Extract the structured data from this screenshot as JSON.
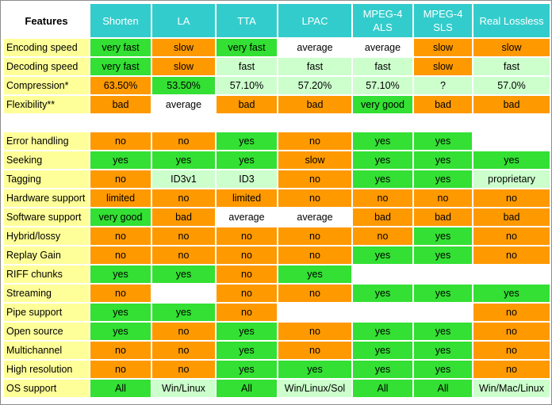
{
  "table": {
    "corner": "Features",
    "columns": [
      "Shorten",
      "LA",
      "TTA",
      "LPAC",
      "MPEG-4 ALS",
      "MPEG-4 SLS",
      "Real Lossless"
    ],
    "colors": {
      "o": "#ff9900",
      "g": "#33e033",
      "lg": "#ccffcc",
      "w": "#ffffff",
      "header": "#33cccc",
      "row_label": "#ffff99"
    },
    "rows": [
      {
        "label": "Encoding speed",
        "cells": [
          {
            "t": "very fast",
            "c": "g"
          },
          {
            "t": "slow",
            "c": "o"
          },
          {
            "t": "very fast",
            "c": "g"
          },
          {
            "t": "average",
            "c": "w"
          },
          {
            "t": "average",
            "c": "w"
          },
          {
            "t": "slow",
            "c": "o"
          },
          {
            "t": "slow",
            "c": "o"
          }
        ]
      },
      {
        "label": "Decoding speed",
        "cells": [
          {
            "t": "very fast",
            "c": "g"
          },
          {
            "t": "slow",
            "c": "o"
          },
          {
            "t": "fast",
            "c": "lg"
          },
          {
            "t": "fast",
            "c": "lg"
          },
          {
            "t": "fast",
            "c": "lg"
          },
          {
            "t": "slow",
            "c": "o"
          },
          {
            "t": "fast",
            "c": "lg"
          }
        ]
      },
      {
        "label": "Compression*",
        "cells": [
          {
            "t": "63.50%",
            "c": "o"
          },
          {
            "t": "53.50%",
            "c": "g"
          },
          {
            "t": "57.10%",
            "c": "lg"
          },
          {
            "t": "57.20%",
            "c": "lg"
          },
          {
            "t": "57.10%",
            "c": "lg"
          },
          {
            "t": "?",
            "c": "lg"
          },
          {
            "t": "57.0%",
            "c": "lg"
          }
        ]
      },
      {
        "label": "Flexibility**",
        "cells": [
          {
            "t": "bad",
            "c": "o"
          },
          {
            "t": "average",
            "c": "w"
          },
          {
            "t": "bad",
            "c": "o"
          },
          {
            "t": "bad",
            "c": "o"
          },
          {
            "t": "very good",
            "c": "g"
          },
          {
            "t": "bad",
            "c": "o"
          },
          {
            "t": "bad",
            "c": "o"
          }
        ]
      },
      {
        "gap": true
      },
      {
        "label": "Error handling",
        "cells": [
          {
            "t": "no",
            "c": "o"
          },
          {
            "t": "no",
            "c": "o"
          },
          {
            "t": "yes",
            "c": "g"
          },
          {
            "t": "no",
            "c": "o"
          },
          {
            "t": "yes",
            "c": "g"
          },
          {
            "t": "yes",
            "c": "g"
          },
          {
            "t": "",
            "c": "w"
          }
        ]
      },
      {
        "label": "Seeking",
        "cells": [
          {
            "t": "yes",
            "c": "g"
          },
          {
            "t": "yes",
            "c": "g"
          },
          {
            "t": "yes",
            "c": "g"
          },
          {
            "t": "slow",
            "c": "o"
          },
          {
            "t": "yes",
            "c": "g"
          },
          {
            "t": "yes",
            "c": "g"
          },
          {
            "t": "yes",
            "c": "g"
          }
        ]
      },
      {
        "label": "Tagging",
        "cells": [
          {
            "t": "no",
            "c": "o"
          },
          {
            "t": "ID3v1",
            "c": "lg"
          },
          {
            "t": "ID3",
            "c": "lg"
          },
          {
            "t": "no",
            "c": "o"
          },
          {
            "t": "yes",
            "c": "g"
          },
          {
            "t": "yes",
            "c": "g"
          },
          {
            "t": "proprietary",
            "c": "lg"
          }
        ]
      },
      {
        "label": "Hardware support",
        "cells": [
          {
            "t": "limited",
            "c": "o"
          },
          {
            "t": "no",
            "c": "o"
          },
          {
            "t": "limited",
            "c": "o"
          },
          {
            "t": "no",
            "c": "o"
          },
          {
            "t": "no",
            "c": "o"
          },
          {
            "t": "no",
            "c": "o"
          },
          {
            "t": "no",
            "c": "o"
          }
        ]
      },
      {
        "label": "Software support",
        "cells": [
          {
            "t": "very good",
            "c": "g"
          },
          {
            "t": "bad",
            "c": "o"
          },
          {
            "t": "average",
            "c": "w"
          },
          {
            "t": "average",
            "c": "w"
          },
          {
            "t": "bad",
            "c": "o"
          },
          {
            "t": "bad",
            "c": "o"
          },
          {
            "t": "bad",
            "c": "o"
          }
        ]
      },
      {
        "label": "Hybrid/lossy",
        "cells": [
          {
            "t": "no",
            "c": "o"
          },
          {
            "t": "no",
            "c": "o"
          },
          {
            "t": "no",
            "c": "o"
          },
          {
            "t": "no",
            "c": "o"
          },
          {
            "t": "no",
            "c": "o"
          },
          {
            "t": "yes",
            "c": "g"
          },
          {
            "t": "no",
            "c": "o"
          }
        ]
      },
      {
        "label": "Replay Gain",
        "cells": [
          {
            "t": "no",
            "c": "o"
          },
          {
            "t": "no",
            "c": "o"
          },
          {
            "t": "no",
            "c": "o"
          },
          {
            "t": "no",
            "c": "o"
          },
          {
            "t": "yes",
            "c": "g"
          },
          {
            "t": "yes",
            "c": "g"
          },
          {
            "t": "no",
            "c": "o"
          }
        ]
      },
      {
        "label": "RIFF chunks",
        "cells": [
          {
            "t": "yes",
            "c": "g"
          },
          {
            "t": "yes",
            "c": "g"
          },
          {
            "t": "no",
            "c": "o"
          },
          {
            "t": "yes",
            "c": "g"
          },
          {
            "t": "",
            "c": "w"
          },
          {
            "t": "",
            "c": "w"
          },
          {
            "t": "",
            "c": "w"
          }
        ]
      },
      {
        "label": "Streaming",
        "cells": [
          {
            "t": "no",
            "c": "o"
          },
          {
            "t": "",
            "c": "w"
          },
          {
            "t": "no",
            "c": "o"
          },
          {
            "t": "no",
            "c": "o"
          },
          {
            "t": "yes",
            "c": "g"
          },
          {
            "t": "yes",
            "c": "g"
          },
          {
            "t": "yes",
            "c": "g"
          }
        ]
      },
      {
        "label": "Pipe support",
        "cells": [
          {
            "t": "yes",
            "c": "g"
          },
          {
            "t": "yes",
            "c": "g"
          },
          {
            "t": "no",
            "c": "o"
          },
          {
            "t": "",
            "c": "w"
          },
          {
            "t": "",
            "c": "w"
          },
          {
            "t": "",
            "c": "w"
          },
          {
            "t": "no",
            "c": "o"
          }
        ]
      },
      {
        "label": "Open source",
        "cells": [
          {
            "t": "yes",
            "c": "g"
          },
          {
            "t": "no",
            "c": "o"
          },
          {
            "t": "yes",
            "c": "g"
          },
          {
            "t": "no",
            "c": "o"
          },
          {
            "t": "yes",
            "c": "g"
          },
          {
            "t": "yes",
            "c": "g"
          },
          {
            "t": "no",
            "c": "o"
          }
        ]
      },
      {
        "label": "Multichannel",
        "cells": [
          {
            "t": "no",
            "c": "o"
          },
          {
            "t": "no",
            "c": "o"
          },
          {
            "t": "yes",
            "c": "g"
          },
          {
            "t": "no",
            "c": "o"
          },
          {
            "t": "yes",
            "c": "g"
          },
          {
            "t": "yes",
            "c": "g"
          },
          {
            "t": "no",
            "c": "o"
          }
        ]
      },
      {
        "label": "High resolution",
        "cells": [
          {
            "t": "no",
            "c": "o"
          },
          {
            "t": "no",
            "c": "o"
          },
          {
            "t": "yes",
            "c": "g"
          },
          {
            "t": "yes",
            "c": "g"
          },
          {
            "t": "yes",
            "c": "g"
          },
          {
            "t": "yes",
            "c": "g"
          },
          {
            "t": "no",
            "c": "o"
          }
        ]
      },
      {
        "label": "OS support",
        "cells": [
          {
            "t": "All",
            "c": "g"
          },
          {
            "t": "Win/Linux",
            "c": "lg"
          },
          {
            "t": "All",
            "c": "g"
          },
          {
            "t": "Win/Linux/Sol",
            "c": "lg"
          },
          {
            "t": "All",
            "c": "g"
          },
          {
            "t": "All",
            "c": "g"
          },
          {
            "t": "Win/Mac/Linux",
            "c": "lg"
          }
        ]
      }
    ]
  }
}
